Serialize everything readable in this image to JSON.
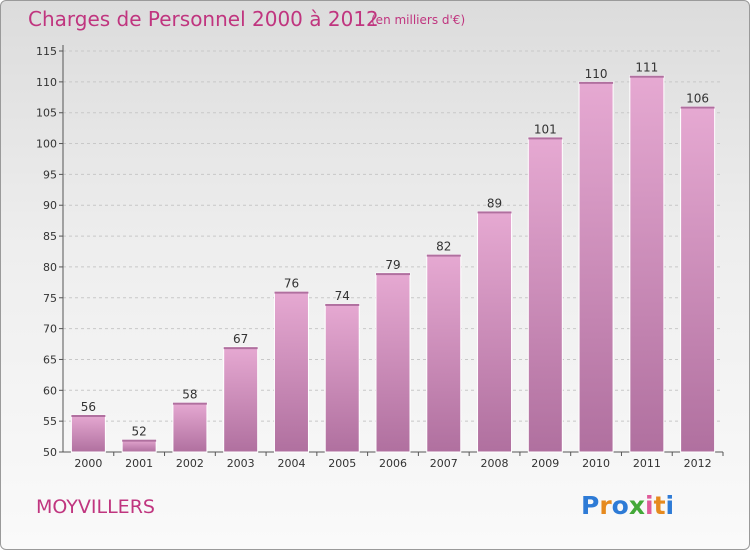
{
  "header": {
    "title": "Charges de Personnel 2000 à 2012",
    "unit_note": "(en milliers d'€)"
  },
  "footer": {
    "commune": "MOYVILLERS",
    "logo": [
      "P",
      "r",
      "o",
      "x",
      "i",
      "t",
      "i"
    ]
  },
  "colors": {
    "title": "#c0357f",
    "bar_top": "#e6a9d2",
    "bar_bottom": "#b0709f",
    "logo_letters": [
      "#2e7bd6",
      "#e68a1e",
      "#2e7bd6",
      "#43a838",
      "#e05a9a",
      "#e68a1e",
      "#2e7bd6"
    ]
  },
  "chart_data": {
    "type": "bar",
    "title": "Charges de Personnel 2000 à 2012",
    "subtitle": "(en milliers d'€)",
    "categories": [
      "2000",
      "2001",
      "2002",
      "2003",
      "2004",
      "2005",
      "2006",
      "2007",
      "2008",
      "2009",
      "2010",
      "2011",
      "2012"
    ],
    "values": [
      56,
      52,
      58,
      67,
      76,
      74,
      79,
      82,
      89,
      101,
      110,
      111,
      106
    ],
    "ylim": [
      50,
      115
    ],
    "yticks": [
      50,
      55,
      60,
      65,
      70,
      75,
      80,
      85,
      90,
      95,
      100,
      105,
      110,
      115
    ],
    "grid": true,
    "data_labels": true
  }
}
